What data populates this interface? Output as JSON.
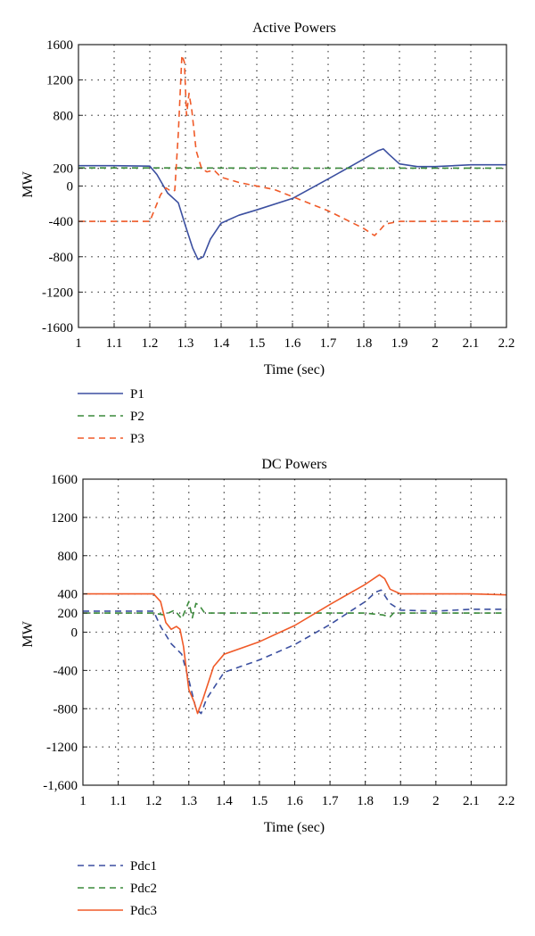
{
  "chart_data": [
    {
      "type": "line",
      "title": "Active Powers",
      "xlabel": "Time (sec)",
      "ylabel": "MW",
      "xlim": [
        1,
        2.2
      ],
      "ylim": [
        -1600,
        1600
      ],
      "x_ticks": [
        1,
        1.1,
        1.2,
        1.3,
        1.4,
        1.5,
        1.6,
        1.7,
        1.8,
        1.9,
        2,
        2.1,
        2.2
      ],
      "x_tick_labels": [
        "1",
        "1.1",
        "1.2",
        "1.3",
        "1.4",
        "1.5",
        "1.6",
        "1.7",
        "1.8",
        "1.9",
        "2",
        "2.1",
        "2.2"
      ],
      "y_ticks": [
        1600,
        1200,
        800,
        200,
        0,
        -400,
        -800,
        -1200,
        -1600
      ],
      "y_tick_labels": [
        "1600",
        "1200",
        "800",
        "200",
        "0",
        "-400",
        "-800",
        "-1200",
        "-1600"
      ],
      "grid": true,
      "legend_position": "below",
      "series": [
        {
          "name": "P1",
          "color": "#3b4fa0",
          "dash": "solid",
          "points": [
            [
              1,
              230
            ],
            [
              1.1,
              230
            ],
            [
              1.2,
              225
            ],
            [
              1.22,
              130
            ],
            [
              1.25,
              -80
            ],
            [
              1.28,
              -190
            ],
            [
              1.3,
              -450
            ],
            [
              1.32,
              -700
            ],
            [
              1.335,
              -830
            ],
            [
              1.35,
              -800
            ],
            [
              1.37,
              -600
            ],
            [
              1.4,
              -420
            ],
            [
              1.45,
              -330
            ],
            [
              1.5,
              -270
            ],
            [
              1.6,
              -140
            ],
            [
              1.7,
              80
            ],
            [
              1.78,
              260
            ],
            [
              1.84,
              400
            ],
            [
              1.855,
              420
            ],
            [
              1.87,
              360
            ],
            [
              1.9,
              250
            ],
            [
              1.95,
              220
            ],
            [
              2,
              220
            ],
            [
              2.1,
              240
            ],
            [
              2.2,
              240
            ]
          ]
        },
        {
          "name": "P2",
          "color": "#3a8a3a",
          "dash": "dashed",
          "points": [
            [
              1,
              205
            ],
            [
              1.3,
              205
            ],
            [
              1.6,
              203
            ],
            [
              1.9,
              203
            ],
            [
              2.2,
              203
            ]
          ]
        },
        {
          "name": "P3",
          "color": "#f05a28",
          "dash": "dashed",
          "points": [
            [
              1,
              -400
            ],
            [
              1.2,
              -400
            ],
            [
              1.21,
              -300
            ],
            [
              1.23,
              -100
            ],
            [
              1.245,
              -20
            ],
            [
              1.26,
              -60
            ],
            [
              1.27,
              -50
            ],
            [
              1.28,
              600
            ],
            [
              1.29,
              1480
            ],
            [
              1.297,
              1400
            ],
            [
              1.303,
              800
            ],
            [
              1.31,
              1050
            ],
            [
              1.318,
              850
            ],
            [
              1.33,
              400
            ],
            [
              1.345,
              200
            ],
            [
              1.36,
              160
            ],
            [
              1.38,
              180
            ],
            [
              1.4,
              100
            ],
            [
              1.45,
              40
            ],
            [
              1.55,
              -40
            ],
            [
              1.6,
              -120
            ],
            [
              1.7,
              -280
            ],
            [
              1.8,
              -480
            ],
            [
              1.83,
              -560
            ],
            [
              1.845,
              -500
            ],
            [
              1.86,
              -430
            ],
            [
              1.9,
              -400
            ],
            [
              2,
              -400
            ],
            [
              2.2,
              -400
            ]
          ]
        }
      ]
    },
    {
      "type": "line",
      "title": "DC Powers",
      "xlabel": "Time (sec)",
      "ylabel": "MW",
      "xlim": [
        1,
        2.2
      ],
      "ylim": [
        -1600,
        1600
      ],
      "x_ticks": [
        1,
        1.1,
        1.2,
        1.3,
        1.4,
        1.5,
        1.6,
        1.7,
        1.8,
        1.9,
        2,
        2.1,
        2.2
      ],
      "x_tick_labels": [
        "1",
        "1.1",
        "1.2",
        "1.3",
        "1.4",
        "1.5",
        "1.6",
        "1.7",
        "1.8",
        "1.9",
        "2",
        "2.1",
        "2.2"
      ],
      "y_ticks": [
        1600,
        1200,
        800,
        400,
        200,
        0,
        -400,
        -800,
        -1200,
        -1600
      ],
      "y_tick_labels": [
        "1600",
        "1200",
        "800",
        "400",
        "200",
        "0",
        "-400",
        "-800",
        "-1200",
        "-1,600"
      ],
      "grid": true,
      "legend_position": "below",
      "series": [
        {
          "name": "Pdc1",
          "color": "#3b4fa0",
          "dash": "dashed",
          "points": [
            [
              1,
              220
            ],
            [
              1.2,
              220
            ],
            [
              1.22,
              60
            ],
            [
              1.25,
              -120
            ],
            [
              1.28,
              -230
            ],
            [
              1.3,
              -500
            ],
            [
              1.32,
              -800
            ],
            [
              1.335,
              -850
            ],
            [
              1.35,
              -700
            ],
            [
              1.4,
              -420
            ],
            [
              1.5,
              -290
            ],
            [
              1.6,
              -130
            ],
            [
              1.7,
              80
            ],
            [
              1.8,
              320
            ],
            [
              1.83,
              420
            ],
            [
              1.845,
              440
            ],
            [
              1.87,
              300
            ],
            [
              1.9,
              230
            ],
            [
              2,
              220
            ],
            [
              2.1,
              240
            ],
            [
              2.2,
              240
            ]
          ]
        },
        {
          "name": "Pdc2",
          "color": "#3a8a3a",
          "dash": "dashed",
          "points": [
            [
              1,
              200
            ],
            [
              1.2,
              200
            ],
            [
              1.23,
              180
            ],
            [
              1.26,
              230
            ],
            [
              1.28,
              140
            ],
            [
              1.3,
              320
            ],
            [
              1.31,
              150
            ],
            [
              1.32,
              300
            ],
            [
              1.33,
              280
            ],
            [
              1.345,
              200
            ],
            [
              1.4,
              200
            ],
            [
              1.6,
              200
            ],
            [
              1.8,
              200
            ],
            [
              1.85,
              180
            ],
            [
              1.87,
              160
            ],
            [
              1.88,
              200
            ],
            [
              1.95,
              200
            ],
            [
              2.2,
              200
            ]
          ]
        },
        {
          "name": "Pdc3",
          "color": "#f05a28",
          "dash": "solid",
          "points": [
            [
              1,
              400
            ],
            [
              1.2,
              400
            ],
            [
              1.22,
              320
            ],
            [
              1.235,
              100
            ],
            [
              1.25,
              30
            ],
            [
              1.265,
              60
            ],
            [
              1.275,
              30
            ],
            [
              1.285,
              -150
            ],
            [
              1.3,
              -600
            ],
            [
              1.315,
              -730
            ],
            [
              1.325,
              -850
            ],
            [
              1.34,
              -700
            ],
            [
              1.37,
              -360
            ],
            [
              1.4,
              -230
            ],
            [
              1.5,
              -100
            ],
            [
              1.6,
              70
            ],
            [
              1.7,
              290
            ],
            [
              1.8,
              500
            ],
            [
              1.84,
              600
            ],
            [
              1.855,
              560
            ],
            [
              1.87,
              450
            ],
            [
              1.9,
              400
            ],
            [
              2,
              400
            ],
            [
              2.1,
              400
            ],
            [
              2.2,
              390
            ]
          ]
        }
      ]
    }
  ]
}
